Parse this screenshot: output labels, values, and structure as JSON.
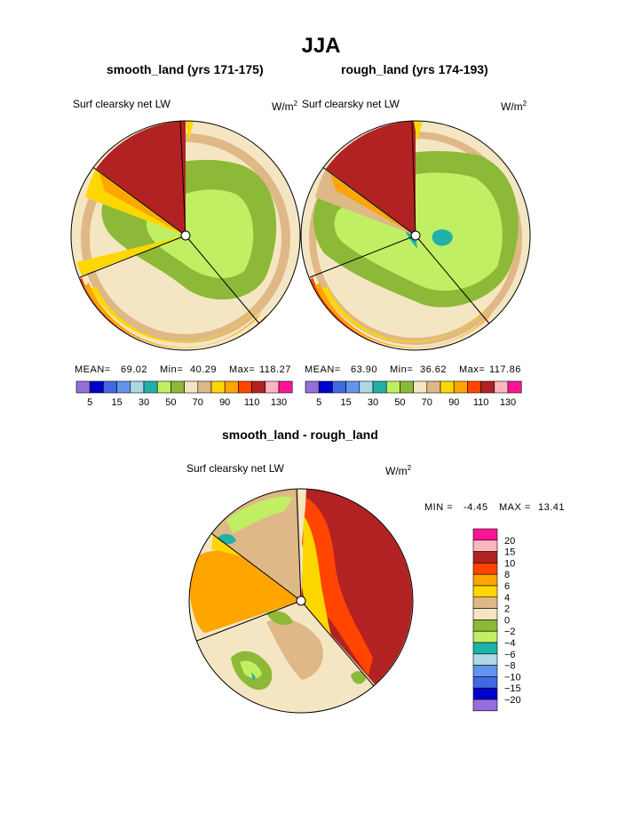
{
  "figure": {
    "title": "JJA",
    "diff_title": "smooth_land - rough_land"
  },
  "panels": [
    {
      "title": "smooth_land (yrs 171-175)",
      "field_label": "Surf clearsky net LW",
      "units": "W/m",
      "units_sup": "2",
      "mean_label": "MEAN=",
      "mean": "69.02",
      "min_label": "Min=",
      "min": "40.29",
      "max_label": "Max=",
      "max": "118.27"
    },
    {
      "title": "rough_land (yrs 174-193)",
      "field_label": "Surf clearsky net LW",
      "units": "W/m",
      "units_sup": "2",
      "mean_label": "MEAN=",
      "mean": "63.90",
      "min_label": "Min=",
      "min": "36.62",
      "max_label": "Max=",
      "max": "117.86"
    }
  ],
  "diff_panel": {
    "field_label": "Surf clearsky net LW",
    "units": "W/m",
    "units_sup": "2",
    "min_label": "MIN =",
    "min": "-4.45",
    "max_label": "MAX =",
    "max": "13.41"
  },
  "colors": {
    "c0": "#9370db",
    "c1": "#0000cd",
    "c2": "#4169e1",
    "c3": "#6495ed",
    "c4": "#add8e6",
    "c5": "#20b2aa",
    "c6": "#c1ef63",
    "c7": "#8db939",
    "c8": "#f5e6c3",
    "c9": "#deb887",
    "c10": "#ffd700",
    "c11": "#ffa500",
    "c12": "#ff4500",
    "c13": "#b22222",
    "c14": "#ffb6c1",
    "c15": "#ff1493"
  },
  "chart_data": [
    {
      "type": "polar contour map",
      "title": "smooth_land (yrs 171-175)",
      "subtitle": "Surf clearsky net LW",
      "units": "W/m2",
      "colorbar_ticks": [
        "5",
        "15",
        "30",
        "50",
        "70",
        "90",
        "110",
        "130"
      ],
      "stats": {
        "mean": 69.02,
        "min": 40.29,
        "max": 118.27
      }
    },
    {
      "type": "polar contour map",
      "title": "rough_land (yrs 174-193)",
      "subtitle": "Surf clearsky net LW",
      "units": "W/m2",
      "colorbar_ticks": [
        "5",
        "15",
        "30",
        "50",
        "70",
        "90",
        "110",
        "130"
      ],
      "stats": {
        "mean": 63.9,
        "min": 36.62,
        "max": 117.86
      }
    },
    {
      "type": "polar contour map",
      "title": "smooth_land - rough_land",
      "subtitle": "Surf clearsky net LW",
      "units": "W/m2",
      "colorbar_levels": [
        "20",
        "15",
        "10",
        "8",
        "6",
        "4",
        "2",
        "0",
        "−2",
        "−4",
        "−6",
        "−8",
        "−10",
        "−15",
        "−20"
      ],
      "stats": {
        "min": -4.45,
        "max": 13.41
      }
    }
  ]
}
